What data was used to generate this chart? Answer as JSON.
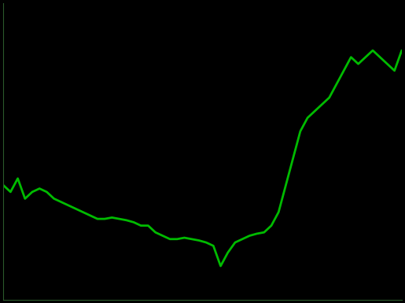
{
  "background_color": "#000000",
  "line_color": "#00bb00",
  "line_width": 2.0,
  "axes_color": "#1a3a1a",
  "y_values": [
    55,
    54,
    56,
    53,
    54,
    54.5,
    54,
    53,
    52.5,
    52,
    51.5,
    51,
    50.5,
    50,
    50,
    50.2,
    50,
    49.8,
    49.5,
    49,
    49,
    48,
    47.5,
    47,
    47,
    47.2,
    47,
    46.8,
    46.5,
    46,
    43,
    45,
    46.5,
    47,
    47.5,
    47.8,
    48,
    49,
    51,
    55,
    59,
    63,
    65,
    66,
    67,
    68,
    70,
    72,
    74,
    73,
    74,
    75,
    74,
    73,
    72,
    75
  ],
  "ylim": [
    38,
    82
  ],
  "xlim": [
    0,
    55
  ],
  "figsize": [
    5.15,
    3.85
  ],
  "dpi": 100,
  "left_spine_color": "#2a5a2a",
  "bottom_spine_color": "#2a5a2a"
}
